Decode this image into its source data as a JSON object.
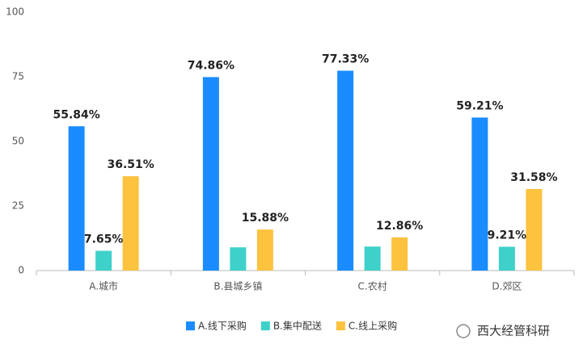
{
  "chart_data": {
    "type": "bar",
    "categories": [
      "A.城市",
      "B.县城乡镇",
      "C.农村",
      "D.郊区"
    ],
    "series": [
      {
        "name": "A.线下采购",
        "color": "#1a8cff",
        "values": [
          55.84,
          74.86,
          77.33,
          59.21
        ],
        "value_labels": [
          "55.84%",
          "74.86%",
          "77.33%",
          "59.21%"
        ]
      },
      {
        "name": "B.集中配送",
        "color": "#3dd1c9",
        "values": [
          7.65,
          9,
          9.3,
          9.21
        ],
        "value_labels": [
          "7.65%",
          null,
          null,
          "9.21%"
        ]
      },
      {
        "name": "C.线上采购",
        "color": "#fdc23e",
        "values": [
          36.51,
          15.88,
          12.86,
          31.58
        ],
        "value_labels": [
          "36.51%",
          "15.88%",
          "12.86%",
          "31.58%"
        ]
      }
    ],
    "ylim": [
      0,
      100
    ],
    "yticks": [
      0,
      25,
      50,
      75,
      100
    ],
    "grid": false,
    "legend": "bottom",
    "watermark": "西大经管科研"
  }
}
